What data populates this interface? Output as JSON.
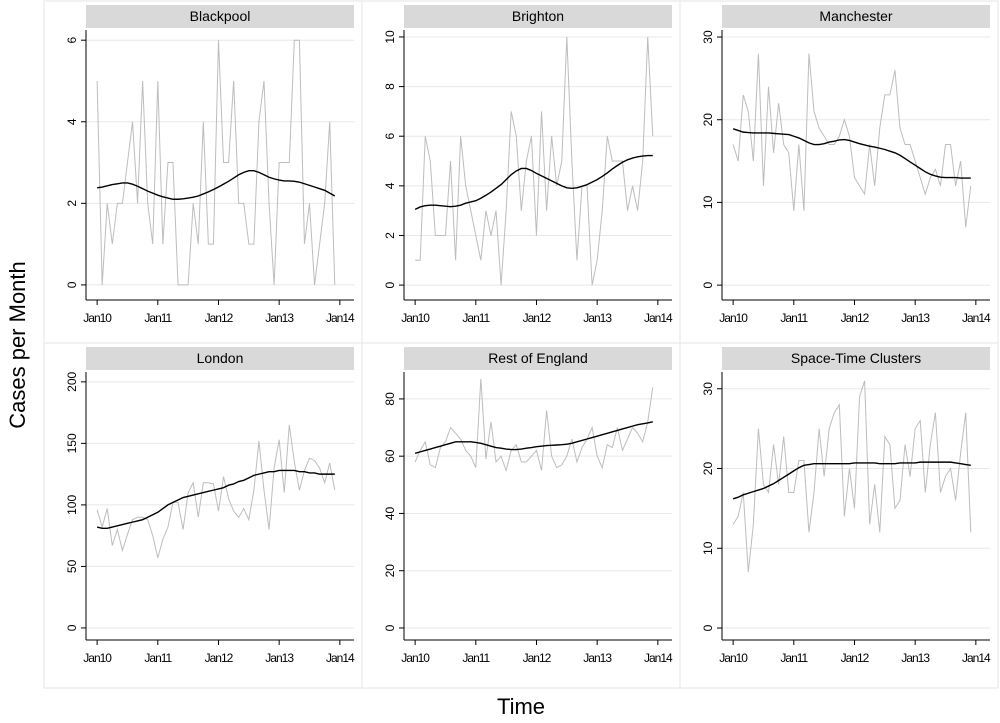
{
  "ylabel": "Cases per Month",
  "xlabel": "Time",
  "chart_data": [
    {
      "type": "line",
      "title": "Blackpool",
      "x": [
        0,
        1,
        2,
        3,
        4,
        5,
        6,
        7,
        8,
        9,
        10,
        11,
        12,
        13,
        14,
        15,
        16,
        17,
        18,
        19,
        20,
        21,
        22,
        23,
        24,
        25,
        26,
        27,
        28,
        29,
        30,
        31,
        32,
        33,
        34,
        35,
        36,
        37,
        38,
        39,
        40,
        41,
        42,
        43,
        44,
        45,
        46,
        47
      ],
      "xlim": [
        -2.2,
        50.8
      ],
      "xticks": [
        {
          "value": 0,
          "label": "Jan10"
        },
        {
          "value": 12,
          "label": "Jan11"
        },
        {
          "value": 24,
          "label": "Jan12"
        },
        {
          "value": 36,
          "label": "Jan13"
        },
        {
          "value": 48,
          "label": "Jan14"
        }
      ],
      "ylim": [
        -0.37,
        6.25
      ],
      "yticks": [
        0,
        2,
        4,
        6
      ],
      "grid": true,
      "series": [
        {
          "color": "#bdbdbd",
          "values": [
            5,
            0,
            2,
            1,
            2,
            2,
            3,
            4,
            2,
            5,
            2,
            1,
            5,
            1,
            3,
            3,
            0,
            0,
            0,
            2,
            1,
            4,
            1,
            1,
            6,
            3,
            3,
            5,
            2,
            2,
            1,
            1,
            4,
            5,
            2,
            0,
            3,
            3,
            3,
            6,
            6,
            1,
            2,
            0,
            1,
            2,
            4,
            0
          ]
        },
        {
          "color": "#000000",
          "values": [
            2.38,
            2.4,
            2.43,
            2.46,
            2.48,
            2.5,
            2.5,
            2.47,
            2.42,
            2.36,
            2.3,
            2.25,
            2.2,
            2.16,
            2.13,
            2.1,
            2.1,
            2.11,
            2.13,
            2.15,
            2.18,
            2.23,
            2.28,
            2.34,
            2.4,
            2.47,
            2.54,
            2.62,
            2.7,
            2.76,
            2.8,
            2.8,
            2.76,
            2.7,
            2.64,
            2.6,
            2.57,
            2.55,
            2.55,
            2.54,
            2.52,
            2.48,
            2.44,
            2.4,
            2.36,
            2.32,
            2.25,
            2.18
          ]
        }
      ]
    },
    {
      "type": "line",
      "title": "Brighton",
      "x": [
        0,
        1,
        2,
        3,
        4,
        5,
        6,
        7,
        8,
        9,
        10,
        11,
        12,
        13,
        14,
        15,
        16,
        17,
        18,
        19,
        20,
        21,
        22,
        23,
        24,
        25,
        26,
        27,
        28,
        29,
        30,
        31,
        32,
        33,
        34,
        35,
        36,
        37,
        38,
        39,
        40,
        41,
        42,
        43,
        44,
        45,
        46,
        47
      ],
      "xlim": [
        -2.2,
        50.8
      ],
      "xticks": [
        {
          "value": 0,
          "label": "Jan10"
        },
        {
          "value": 12,
          "label": "Jan11"
        },
        {
          "value": 24,
          "label": "Jan12"
        },
        {
          "value": 36,
          "label": "Jan13"
        },
        {
          "value": 48,
          "label": "Jan14"
        }
      ],
      "ylim": [
        -0.6,
        10.28
      ],
      "yticks": [
        0,
        2,
        4,
        6,
        8,
        10
      ],
      "grid": true,
      "series": [
        {
          "color": "#bdbdbd",
          "values": [
            1,
            1,
            6,
            5,
            2,
            2,
            2,
            5,
            1,
            6,
            4,
            3,
            2,
            1,
            3,
            2,
            3,
            0,
            3,
            7,
            6,
            3,
            5,
            6,
            2,
            7,
            3,
            6,
            4,
            5,
            10,
            5,
            1,
            4,
            4,
            0,
            1,
            3,
            6,
            5,
            5,
            5,
            3,
            4,
            3,
            5,
            10,
            6
          ]
        },
        {
          "color": "#000000",
          "values": [
            3.05,
            3.15,
            3.2,
            3.22,
            3.22,
            3.2,
            3.18,
            3.16,
            3.18,
            3.22,
            3.3,
            3.35,
            3.4,
            3.5,
            3.62,
            3.75,
            3.9,
            4.05,
            4.25,
            4.45,
            4.6,
            4.7,
            4.7,
            4.62,
            4.5,
            4.4,
            4.3,
            4.2,
            4.1,
            4.0,
            3.92,
            3.9,
            3.92,
            3.98,
            4.05,
            4.15,
            4.25,
            4.38,
            4.52,
            4.68,
            4.82,
            4.95,
            5.05,
            5.12,
            5.17,
            5.2,
            5.22,
            5.22
          ]
        }
      ]
    },
    {
      "type": "line",
      "title": "Manchester",
      "x": [
        0,
        1,
        2,
        3,
        4,
        5,
        6,
        7,
        8,
        9,
        10,
        11,
        12,
        13,
        14,
        15,
        16,
        17,
        18,
        19,
        20,
        21,
        22,
        23,
        24,
        25,
        26,
        27,
        28,
        29,
        30,
        31,
        32,
        33,
        34,
        35,
        36,
        37,
        38,
        39,
        40,
        41,
        42,
        43,
        44,
        45,
        46,
        47
      ],
      "xlim": [
        -2.2,
        50.8
      ],
      "xticks": [
        {
          "value": 0,
          "label": "Jan10"
        },
        {
          "value": 12,
          "label": "Jan11"
        },
        {
          "value": 24,
          "label": "Jan12"
        },
        {
          "value": 36,
          "label": "Jan13"
        },
        {
          "value": 48,
          "label": "Jan14"
        }
      ],
      "ylim": [
        -1.8,
        30.85
      ],
      "yticks": [
        0,
        10,
        20,
        30
      ],
      "grid": true,
      "series": [
        {
          "color": "#bdbdbd",
          "values": [
            17,
            15,
            23,
            21,
            15,
            28,
            12,
            24,
            16,
            22,
            17,
            16,
            9,
            17,
            9,
            28,
            21,
            19,
            18,
            17,
            17,
            18,
            20,
            18,
            13,
            12,
            11,
            17,
            12,
            19,
            23,
            23,
            26,
            19,
            17,
            17,
            15,
            13,
            11,
            13,
            14,
            12,
            17,
            17,
            12,
            15,
            7,
            12
          ]
        },
        {
          "color": "#000000",
          "values": [
            18.9,
            18.7,
            18.5,
            18.45,
            18.4,
            18.4,
            18.4,
            18.4,
            18.35,
            18.3,
            18.25,
            18.2,
            18.0,
            17.8,
            17.5,
            17.2,
            17.0,
            17.0,
            17.1,
            17.3,
            17.4,
            17.55,
            17.6,
            17.5,
            17.3,
            17.1,
            16.95,
            16.8,
            16.7,
            16.55,
            16.4,
            16.2,
            16.0,
            15.7,
            15.3,
            14.9,
            14.5,
            14.1,
            13.7,
            13.4,
            13.2,
            13.05,
            13.0,
            13.0,
            13.0,
            12.95,
            12.95,
            12.95
          ]
        }
      ]
    },
    {
      "type": "line",
      "title": "London",
      "x": [
        0,
        1,
        2,
        3,
        4,
        5,
        6,
        7,
        8,
        9,
        10,
        11,
        12,
        13,
        14,
        15,
        16,
        17,
        18,
        19,
        20,
        21,
        22,
        23,
        24,
        25,
        26,
        27,
        28,
        29,
        30,
        31,
        32,
        33,
        34,
        35,
        36,
        37,
        38,
        39,
        40,
        41,
        42,
        43,
        44,
        45,
        46,
        47
      ],
      "xlim": [
        -2.2,
        50.8
      ],
      "xticks": [
        {
          "value": 0,
          "label": "Jan10"
        },
        {
          "value": 12,
          "label": "Jan11"
        },
        {
          "value": 24,
          "label": "Jan12"
        },
        {
          "value": 36,
          "label": "Jan13"
        },
        {
          "value": 48,
          "label": "Jan14"
        }
      ],
      "ylim": [
        -9.8,
        208
      ],
      "yticks": [
        0,
        50,
        100,
        150,
        200
      ],
      "grid": true,
      "series": [
        {
          "color": "#bdbdbd",
          "values": [
            96,
            82,
            97,
            67,
            80,
            63,
            76,
            88,
            90,
            90,
            88,
            75,
            57,
            72,
            82,
            102,
            102,
            80,
            110,
            118,
            90,
            118,
            118,
            117,
            95,
            123,
            105,
            95,
            90,
            97,
            88,
            112,
            152,
            112,
            80,
            130,
            153,
            110,
            165,
            135,
            112,
            128,
            138,
            136,
            130,
            118,
            134,
            112
          ]
        },
        {
          "color": "#000000",
          "values": [
            82,
            81,
            81,
            82,
            83,
            84,
            85,
            86,
            87,
            88,
            90,
            92,
            94,
            97,
            100,
            102,
            104,
            106,
            107,
            108,
            109,
            110,
            111,
            112,
            113,
            114,
            116,
            117,
            119,
            120,
            122,
            124,
            125,
            126,
            127,
            127,
            128,
            128,
            128,
            128,
            127,
            127,
            126,
            126,
            125,
            125,
            125,
            125
          ]
        }
      ]
    },
    {
      "type": "line",
      "title": "Rest of England",
      "x": [
        0,
        1,
        2,
        3,
        4,
        5,
        6,
        7,
        8,
        9,
        10,
        11,
        12,
        13,
        14,
        15,
        16,
        17,
        18,
        19,
        20,
        21,
        22,
        23,
        24,
        25,
        26,
        27,
        28,
        29,
        30,
        31,
        32,
        33,
        34,
        35,
        36,
        37,
        38,
        39,
        40,
        41,
        42,
        43,
        44,
        45,
        46,
        47
      ],
      "xlim": [
        -2.2,
        50.8
      ],
      "xticks": [
        {
          "value": 0,
          "label": "Jan10"
        },
        {
          "value": 12,
          "label": "Jan11"
        },
        {
          "value": 24,
          "label": "Jan12"
        },
        {
          "value": 36,
          "label": "Jan13"
        },
        {
          "value": 48,
          "label": "Jan14"
        }
      ],
      "ylim": [
        -4.2,
        89.4
      ],
      "yticks": [
        0,
        20,
        40,
        60,
        80
      ],
      "grid": true,
      "series": [
        {
          "color": "#bdbdbd",
          "values": [
            58,
            62,
            65,
            57,
            56,
            63,
            65,
            70,
            68,
            66,
            62,
            60,
            56,
            87,
            59,
            72,
            58,
            60,
            55,
            62,
            64,
            58,
            58,
            60,
            62,
            55,
            76,
            60,
            56,
            57,
            60,
            66,
            58,
            63,
            66,
            70,
            60,
            56,
            64,
            63,
            70,
            62,
            66,
            70,
            68,
            65,
            72,
            84
          ]
        },
        {
          "color": "#000000",
          "values": [
            61,
            61.5,
            62,
            62.5,
            63,
            63.5,
            64,
            64.5,
            65,
            65,
            65,
            65,
            64.8,
            64.5,
            64,
            63.5,
            63,
            62.8,
            62.5,
            62.3,
            62.3,
            62.5,
            62.8,
            63,
            63.3,
            63.5,
            63.7,
            63.8,
            63.9,
            64,
            64.2,
            64.5,
            65,
            65.5,
            66,
            66.5,
            67,
            67.5,
            68,
            68.5,
            69,
            69.5,
            70,
            70.5,
            71,
            71.3,
            71.6,
            72
          ]
        }
      ]
    },
    {
      "type": "line",
      "title": "Space-Time Clusters",
      "x": [
        0,
        1,
        2,
        3,
        4,
        5,
        6,
        7,
        8,
        9,
        10,
        11,
        12,
        13,
        14,
        15,
        16,
        17,
        18,
        19,
        20,
        21,
        22,
        23,
        24,
        25,
        26,
        27,
        28,
        29,
        30,
        31,
        32,
        33,
        34,
        35,
        36,
        37,
        38,
        39,
        40,
        41,
        42,
        43,
        44,
        45,
        46,
        47
      ],
      "xlim": [
        -2.2,
        50.8
      ],
      "xticks": [
        {
          "value": 0,
          "label": "Jan10"
        },
        {
          "value": 12,
          "label": "Jan11"
        },
        {
          "value": 24,
          "label": "Jan12"
        },
        {
          "value": 36,
          "label": "Jan13"
        },
        {
          "value": 48,
          "label": "Jan14"
        }
      ],
      "ylim": [
        -1.5,
        32.1
      ],
      "yticks": [
        0,
        10,
        20,
        30
      ],
      "grid": true,
      "series": [
        {
          "color": "#bdbdbd",
          "values": [
            13,
            14,
            17,
            7,
            13,
            25,
            18,
            17,
            23,
            18,
            24,
            17,
            17,
            21,
            21,
            12,
            17,
            25,
            19,
            25,
            27,
            28,
            14,
            20,
            15,
            29,
            31,
            13,
            18,
            12,
            24,
            23,
            15,
            16,
            23,
            19,
            25,
            26,
            17,
            23,
            27,
            17,
            19,
            20,
            16,
            22,
            27,
            12
          ]
        },
        {
          "color": "#000000",
          "values": [
            16.2,
            16.4,
            16.7,
            16.9,
            17.1,
            17.3,
            17.5,
            17.8,
            18.1,
            18.5,
            18.9,
            19.3,
            19.7,
            20.1,
            20.4,
            20.5,
            20.6,
            20.6,
            20.6,
            20.6,
            20.6,
            20.6,
            20.6,
            20.6,
            20.7,
            20.7,
            20.7,
            20.7,
            20.7,
            20.6,
            20.6,
            20.6,
            20.6,
            20.7,
            20.7,
            20.7,
            20.7,
            20.8,
            20.8,
            20.8,
            20.8,
            20.8,
            20.8,
            20.8,
            20.7,
            20.6,
            20.5,
            20.4
          ]
        }
      ]
    }
  ]
}
